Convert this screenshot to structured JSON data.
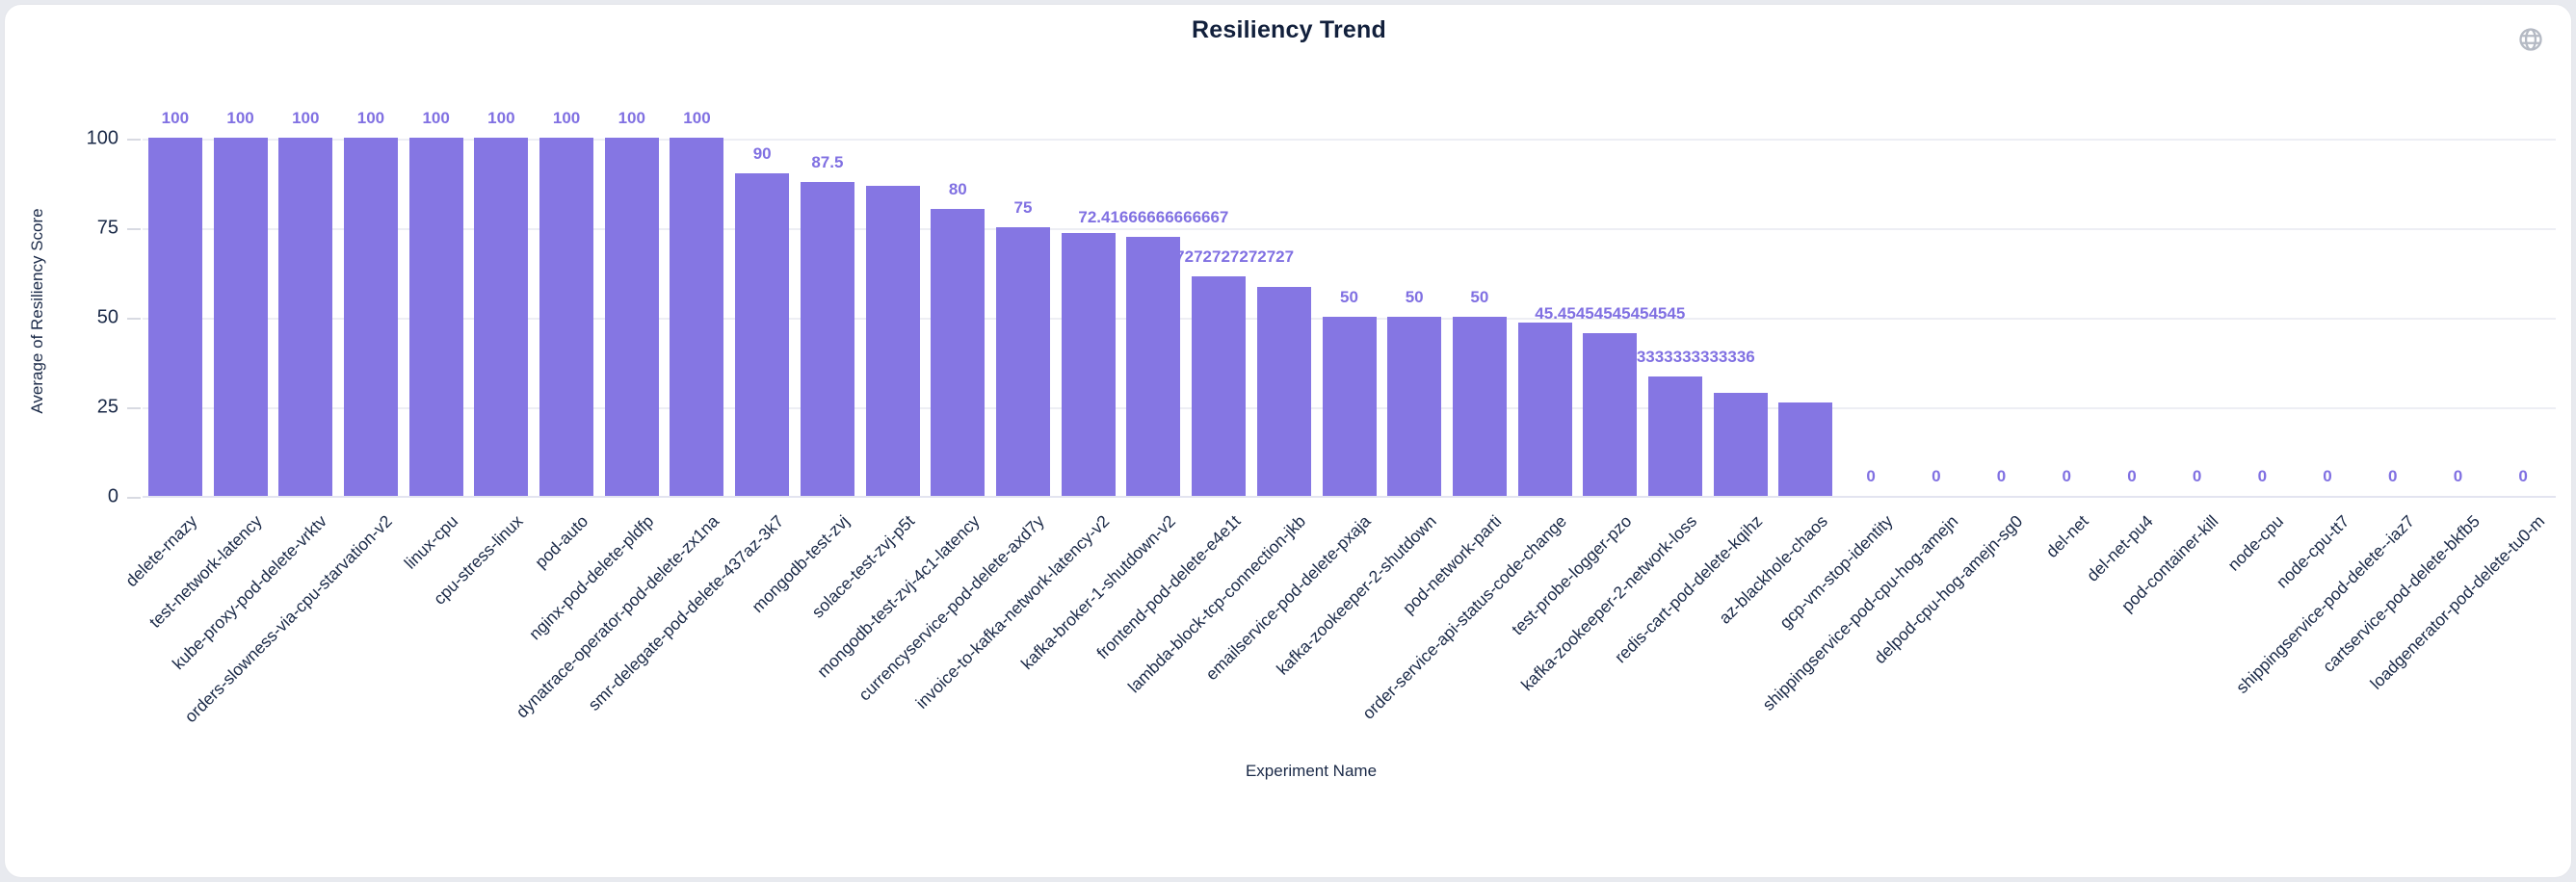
{
  "chart_data": {
    "type": "bar",
    "title": "Resiliency Trend",
    "xlabel": "Experiment Name",
    "ylabel": "Average of Resiliency Score",
    "ylim": [
      0,
      100
    ],
    "yticks": [
      0,
      25,
      50,
      75,
      100
    ],
    "grid": true,
    "legend": "none",
    "bar_color": "#8576e3",
    "value_label_color": "#8070e2",
    "axis_text_color": "#1a2947",
    "categories": [
      "delete-rnazy",
      "test-network-latency",
      "kube-proxy-pod-delete-vrktv",
      "orders-slowness-via-cpu-starvation-v2",
      "linux-cpu",
      "cpu-stress-linux",
      "pod-auto",
      "nginx-pod-delete-pldfp",
      "dynatrace-operator-pod-delete-zx1na",
      "smr-delegate-pod-delete-437az-3k7",
      "mongodb-test-zvj",
      "solace-test-zvj-p5t",
      "mongodb-test-zvj-4c1-latency",
      "currencyservice-pod-delete-axd7y",
      "invoice-to-kafka-network-latency-v2",
      "kafka-broker-1-shutdown-v2",
      "frontend-pod-delete-e4e1t",
      "lambda-block-tcp-connection-jkb",
      "emailservice-pod-delete-pxaja",
      "kafka-zookeeper-2-shutdown",
      "pod-network-parti",
      "order-service-api-status-code-change",
      "test-probe-logger-pzo",
      "kafka-zookeeper-2-network-loss",
      "redis-cart-pod-delete-kqihz",
      "az-blackhole-chaos",
      "gcp-vm-stop-identity",
      "shippingservice-pod-cpu-hog-amejn",
      "delpod-cpu-hog-amejn-sg0",
      "del-net",
      "del-net-pu4",
      "pod-container-kill",
      "node-cpu",
      "node-cpu-tt7",
      "shippingservice-pod-delete--iaz7",
      "cartservice-pod-delete-bkfb5",
      "loadgenerator-pod-delete-tu0-m"
    ],
    "values": [
      100,
      100,
      100,
      100,
      100,
      100,
      100,
      100,
      100,
      90,
      87.5,
      86.67,
      80,
      75,
      73.33,
      72.41666666666667,
      61.27272727272727,
      58.33,
      50,
      50,
      50,
      48.33,
      45.45454545454545,
      33.333333333333336,
      28.75,
      26,
      0,
      0,
      0,
      0,
      0,
      0,
      0,
      0,
      0,
      0,
      0
    ],
    "value_labels_shown": [
      "100",
      "100",
      "100",
      "100",
      "100",
      "100",
      "100",
      "100",
      "100",
      "90",
      "87.5",
      "",
      "80",
      "75",
      "",
      "72.41666666666667",
      "61.27272727272727",
      "",
      "50",
      "50",
      "50",
      "",
      "45.45454545454545",
      "33.333333333333336",
      "",
      "",
      "0",
      "0",
      "0",
      "0",
      "0",
      "0",
      "0",
      "0",
      "0",
      "0",
      "0"
    ],
    "icons": {
      "top_right": "globe-icon"
    }
  }
}
